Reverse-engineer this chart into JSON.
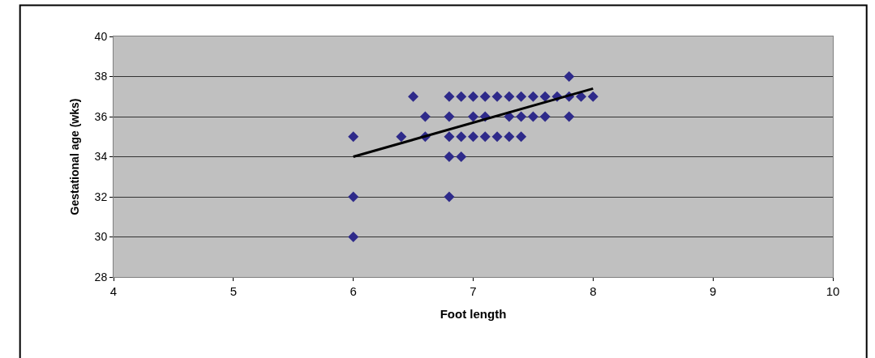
{
  "chart_data": {
    "type": "scatter",
    "xlabel": "Foot length",
    "ylabel": "Gestational age (wks)",
    "xlim": [
      4,
      10
    ],
    "xticks": [
      4,
      5,
      6,
      7,
      8,
      9,
      10
    ],
    "ylim": [
      28,
      40
    ],
    "yticks": [
      28,
      30,
      32,
      34,
      36,
      38,
      40
    ],
    "grid": "y",
    "series": [
      {
        "marker": "diamond",
        "color": "#2e2a8a",
        "x": [
          6.0,
          6.4,
          6.6,
          6.8,
          6.9,
          7.0,
          7.1,
          7.2,
          7.3,
          7.4,
          6.5,
          6.8,
          6.9,
          7.0,
          7.1,
          7.2,
          7.3,
          7.4,
          7.5,
          7.6,
          7.7,
          7.8,
          7.9,
          8.0,
          6.6,
          6.8,
          7.0,
          7.1,
          7.3,
          7.4,
          7.5,
          7.6,
          7.8,
          7.8,
          6.8,
          6.9,
          6.0,
          6.8,
          6.0
        ],
        "values": [
          35,
          35,
          35,
          35,
          35,
          35,
          35,
          35,
          35,
          35,
          37,
          37,
          37,
          37,
          37,
          37,
          37,
          37,
          37,
          37,
          37,
          37,
          37,
          37,
          36,
          36,
          36,
          36,
          36,
          36,
          36,
          36,
          36,
          38,
          34,
          34,
          32,
          32,
          30
        ]
      },
      {
        "type": "line",
        "marker": "none",
        "color": "#000000",
        "x": [
          6,
          8
        ],
        "values": [
          34.0,
          37.4
        ]
      }
    ]
  }
}
